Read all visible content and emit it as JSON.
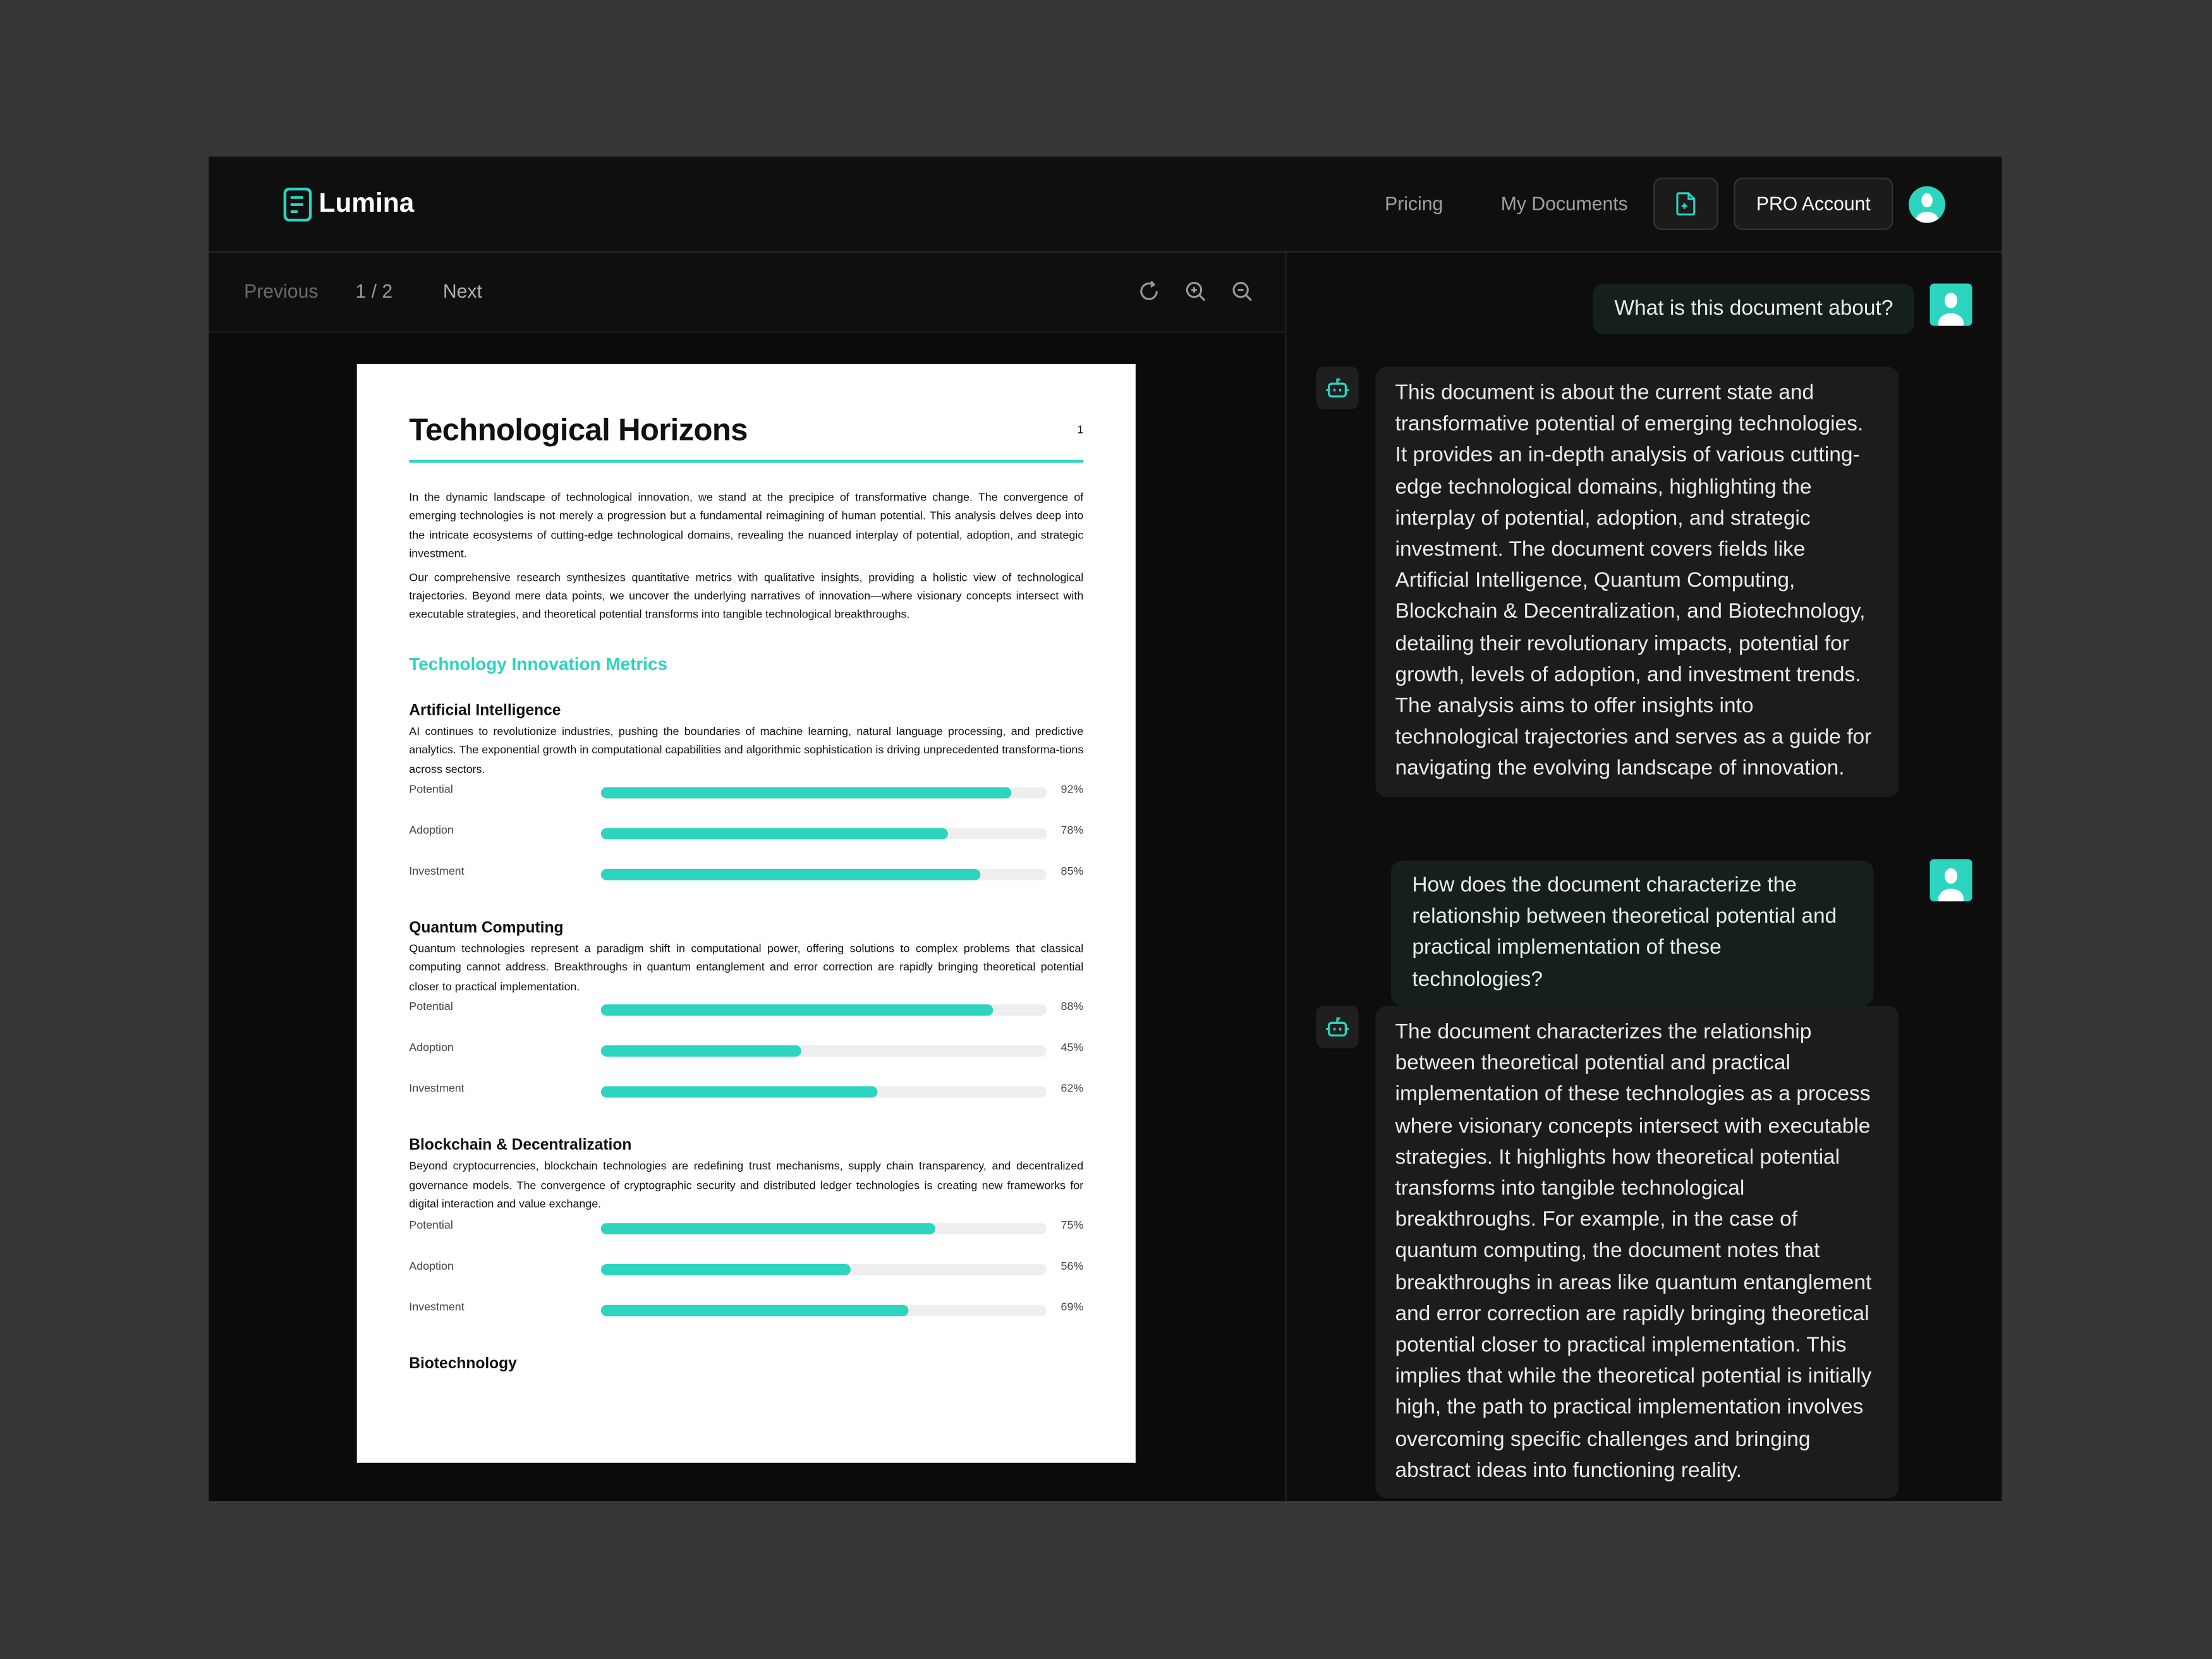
{
  "colors": {
    "accent": "#2dd4bf",
    "background": "#363638",
    "app": "#0f0f0f"
  },
  "header": {
    "logo": "Lumina",
    "nav": [
      "Pricing",
      "My Documents"
    ],
    "upload_icon": "file-plus-icon",
    "pro_button": "PRO Account"
  },
  "toolbar": {
    "previous": "Previous",
    "page_indicator": "1 / 2",
    "next": "Next",
    "icons": [
      "refresh-icon",
      "zoom-in-icon",
      "zoom-out-icon"
    ]
  },
  "document": {
    "title": "Technological Horizons",
    "page_number": "1",
    "paragraphs": [
      "In the dynamic landscape of technological innovation, we stand at the precipice of transformative change. The convergence of emerging technologies is not merely a progression but a fundamental reimagining of human potential. This analysis delves deep into the intricate ecosystems of cutting-edge technological domains, revealing the nuanced interplay of potential, adoption, and strategic investment.",
      "Our comprehensive research synthesizes quantitative metrics with qualitative insights, providing a holistic view of technological trajectories. Beyond mere data points, we uncover the underlying narratives of innovation—where visionary concepts intersect with executable strategies, and theoretical potential transforms into tangible technological breakthroughs."
    ],
    "section_title": "Technology Innovation Metrics",
    "sections": [
      {
        "title": "Artificial Intelligence",
        "text": "AI continues to revolutionize industries, pushing the boundaries of machine learning, natural language processing, and predictive analytics. The exponential growth in computational capabilities and algorithmic sophistication is driving unprecedented transforma-tions across sectors.",
        "metrics": [
          {
            "label": "Potential",
            "value": 92,
            "text": "92%"
          },
          {
            "label": "Adoption",
            "value": 78,
            "text": "78%"
          },
          {
            "label": "Investment",
            "value": 85,
            "text": "85%"
          }
        ]
      },
      {
        "title": "Quantum Computing",
        "text": "Quantum technologies represent a paradigm shift in computational power, offering solutions to complex problems that classical computing cannot address. Breakthroughs in quantum entanglement and error correction are rapidly bringing theoretical potential closer to practical implementation.",
        "metrics": [
          {
            "label": "Potential",
            "value": 88,
            "text": "88%"
          },
          {
            "label": "Adoption",
            "value": 45,
            "text": "45%"
          },
          {
            "label": "Investment",
            "value": 62,
            "text": "62%"
          }
        ]
      },
      {
        "title": "Blockchain & Decentralization",
        "text": "Beyond cryptocurrencies, blockchain technologies are redefining trust mechanisms, supply chain transparency, and decentralized governance models. The convergence of cryptographic security and distributed ledger technologies is creating new frameworks for digital interaction and value exchange.",
        "metrics": [
          {
            "label": "Potential",
            "value": 75,
            "text": "75%"
          },
          {
            "label": "Adoption",
            "value": 56,
            "text": "56%"
          },
          {
            "label": "Investment",
            "value": 69,
            "text": "69%"
          }
        ]
      },
      {
        "title": "Biotechnology",
        "text": "",
        "metrics": []
      }
    ]
  },
  "chat": [
    {
      "role": "user",
      "text": "What is this document about?"
    },
    {
      "role": "assistant",
      "text": "This document is about the current state and transformative potential of emerging technologies. It provides an in-depth analysis of various cutting-edge technological domains, highlighting the interplay of potential, adoption, and strategic investment. The document covers fields like Artificial Intelligence, Quantum Computing, Blockchain & Decentralization, and Biotechnology, detailing their revolutionary impacts, potential for growth, levels of adoption, and investment trends. The analysis aims to offer insights into technological trajectories and serves as a guide for navigating the evolving landscape of innovation."
    },
    {
      "role": "user",
      "text": "How does the document characterize the relationship between theoretical potential and practical implementation of these technologies?"
    },
    {
      "role": "assistant",
      "text": "The document characterizes the relationship between theoretical potential and practical implementation of these technologies as a process where visionary concepts intersect with executable strategies. It highlights how theoretical potential transforms into tangible technological breakthroughs. For example, in the case of quantum computing, the document notes that breakthroughs in areas like quantum entanglement and error correction are rapidly bringing theoretical potential closer to practical implementation. This implies that while the theoretical potential is initially high, the path to practical implementation involves overcoming specific challenges and bringing abstract ideas into functioning reality."
    }
  ]
}
